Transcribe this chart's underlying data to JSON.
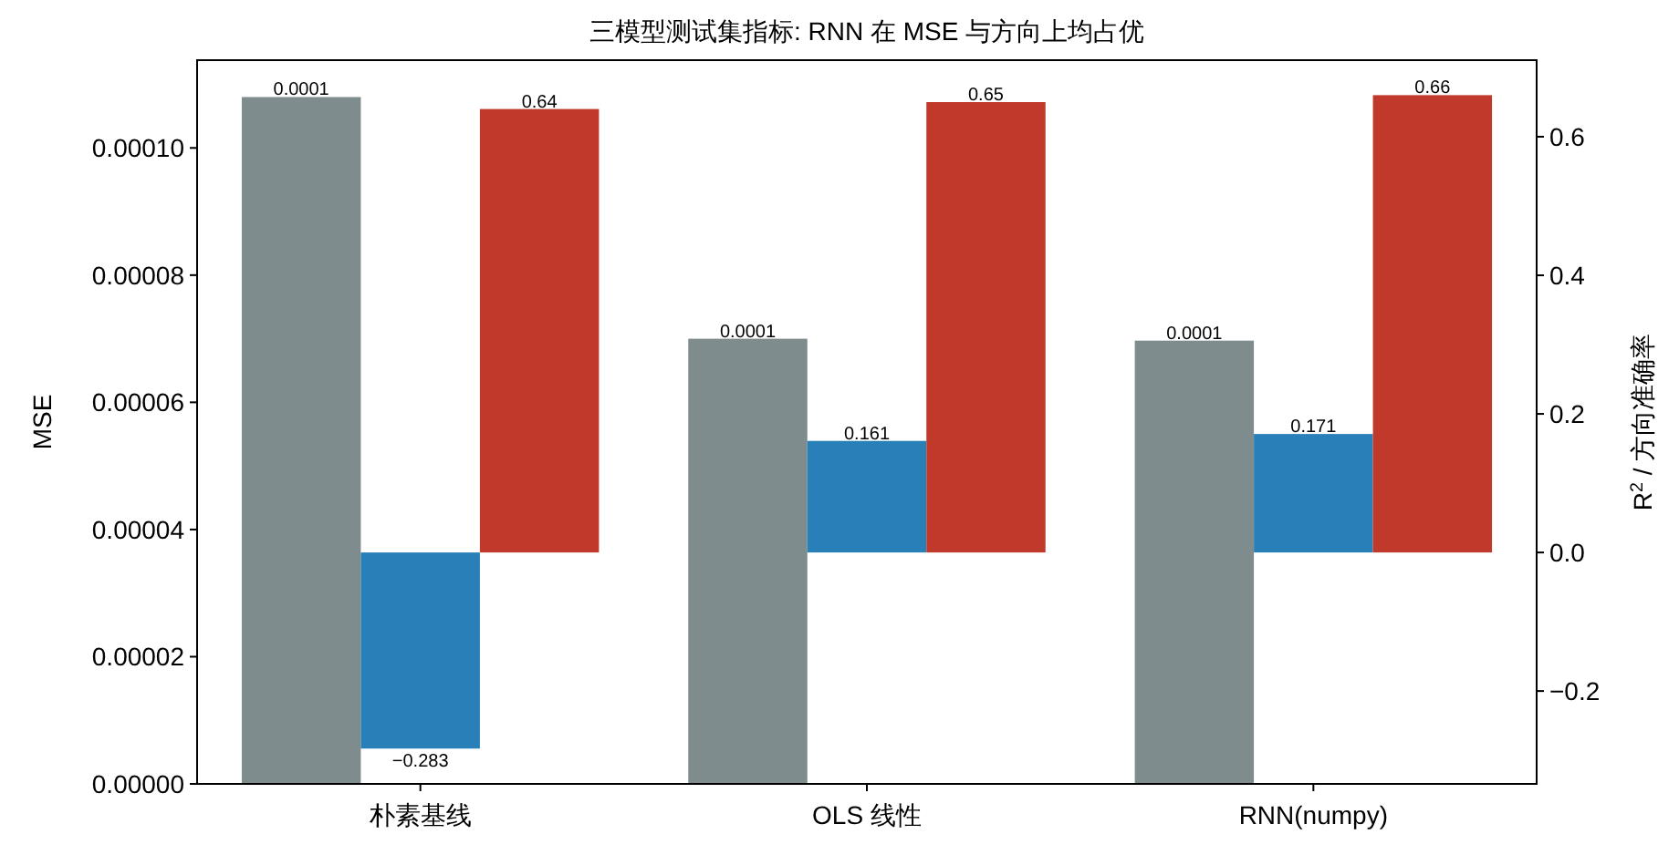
{
  "chart_data": {
    "type": "bar",
    "title": "三模型测试集指标: RNN 在 MSE 与方向上均占优",
    "ylabel": "MSE",
    "y2label": "R$^{2}$ / 方向准确率",
    "categories": [
      "朴素基线",
      "OLS 线性",
      "RNN(numpy)"
    ],
    "series": [
      {
        "color": "#7f8c8d",
        "values": [
          0.000108,
          7e-05,
          6.97e-05
        ],
        "value_labels": [
          "0.0001",
          "0.0001",
          "0.0001"
        ]
      },
      {
        "color": "#2980b9",
        "axis": "y2",
        "values": [
          -0.283,
          0.161,
          0.171
        ],
        "value_labels": [
          "−0.283",
          "0.161",
          "0.171"
        ]
      },
      {
        "color": "#c0392b",
        "axis": "y2",
        "values": [
          0.64,
          0.65,
          0.66
        ],
        "value_labels": [
          "0.64",
          "0.65",
          "0.66"
        ]
      }
    ],
    "ylim": [
      0,
      0.0001138
    ],
    "yticks": [
      {
        "value": 0,
        "label": "0.00000"
      },
      {
        "value": 2e-05,
        "label": "0.00002"
      },
      {
        "value": 4e-05,
        "label": "0.00004"
      },
      {
        "value": 6e-05,
        "label": "0.00006"
      },
      {
        "value": 8e-05,
        "label": "0.00008"
      },
      {
        "value": 0.0001,
        "label": "0.00010"
      }
    ],
    "y2lim": [
      -0.334,
      0.7105
    ],
    "y2ticks": [
      {
        "value": -0.2,
        "label": "−0.2"
      },
      {
        "value": 0,
        "label": "0.0"
      },
      {
        "value": 0.2,
        "label": "0.2"
      },
      {
        "value": 0.4,
        "label": "0.4"
      },
      {
        "value": 0.6,
        "label": "0.6"
      }
    ],
    "grid": false
  }
}
